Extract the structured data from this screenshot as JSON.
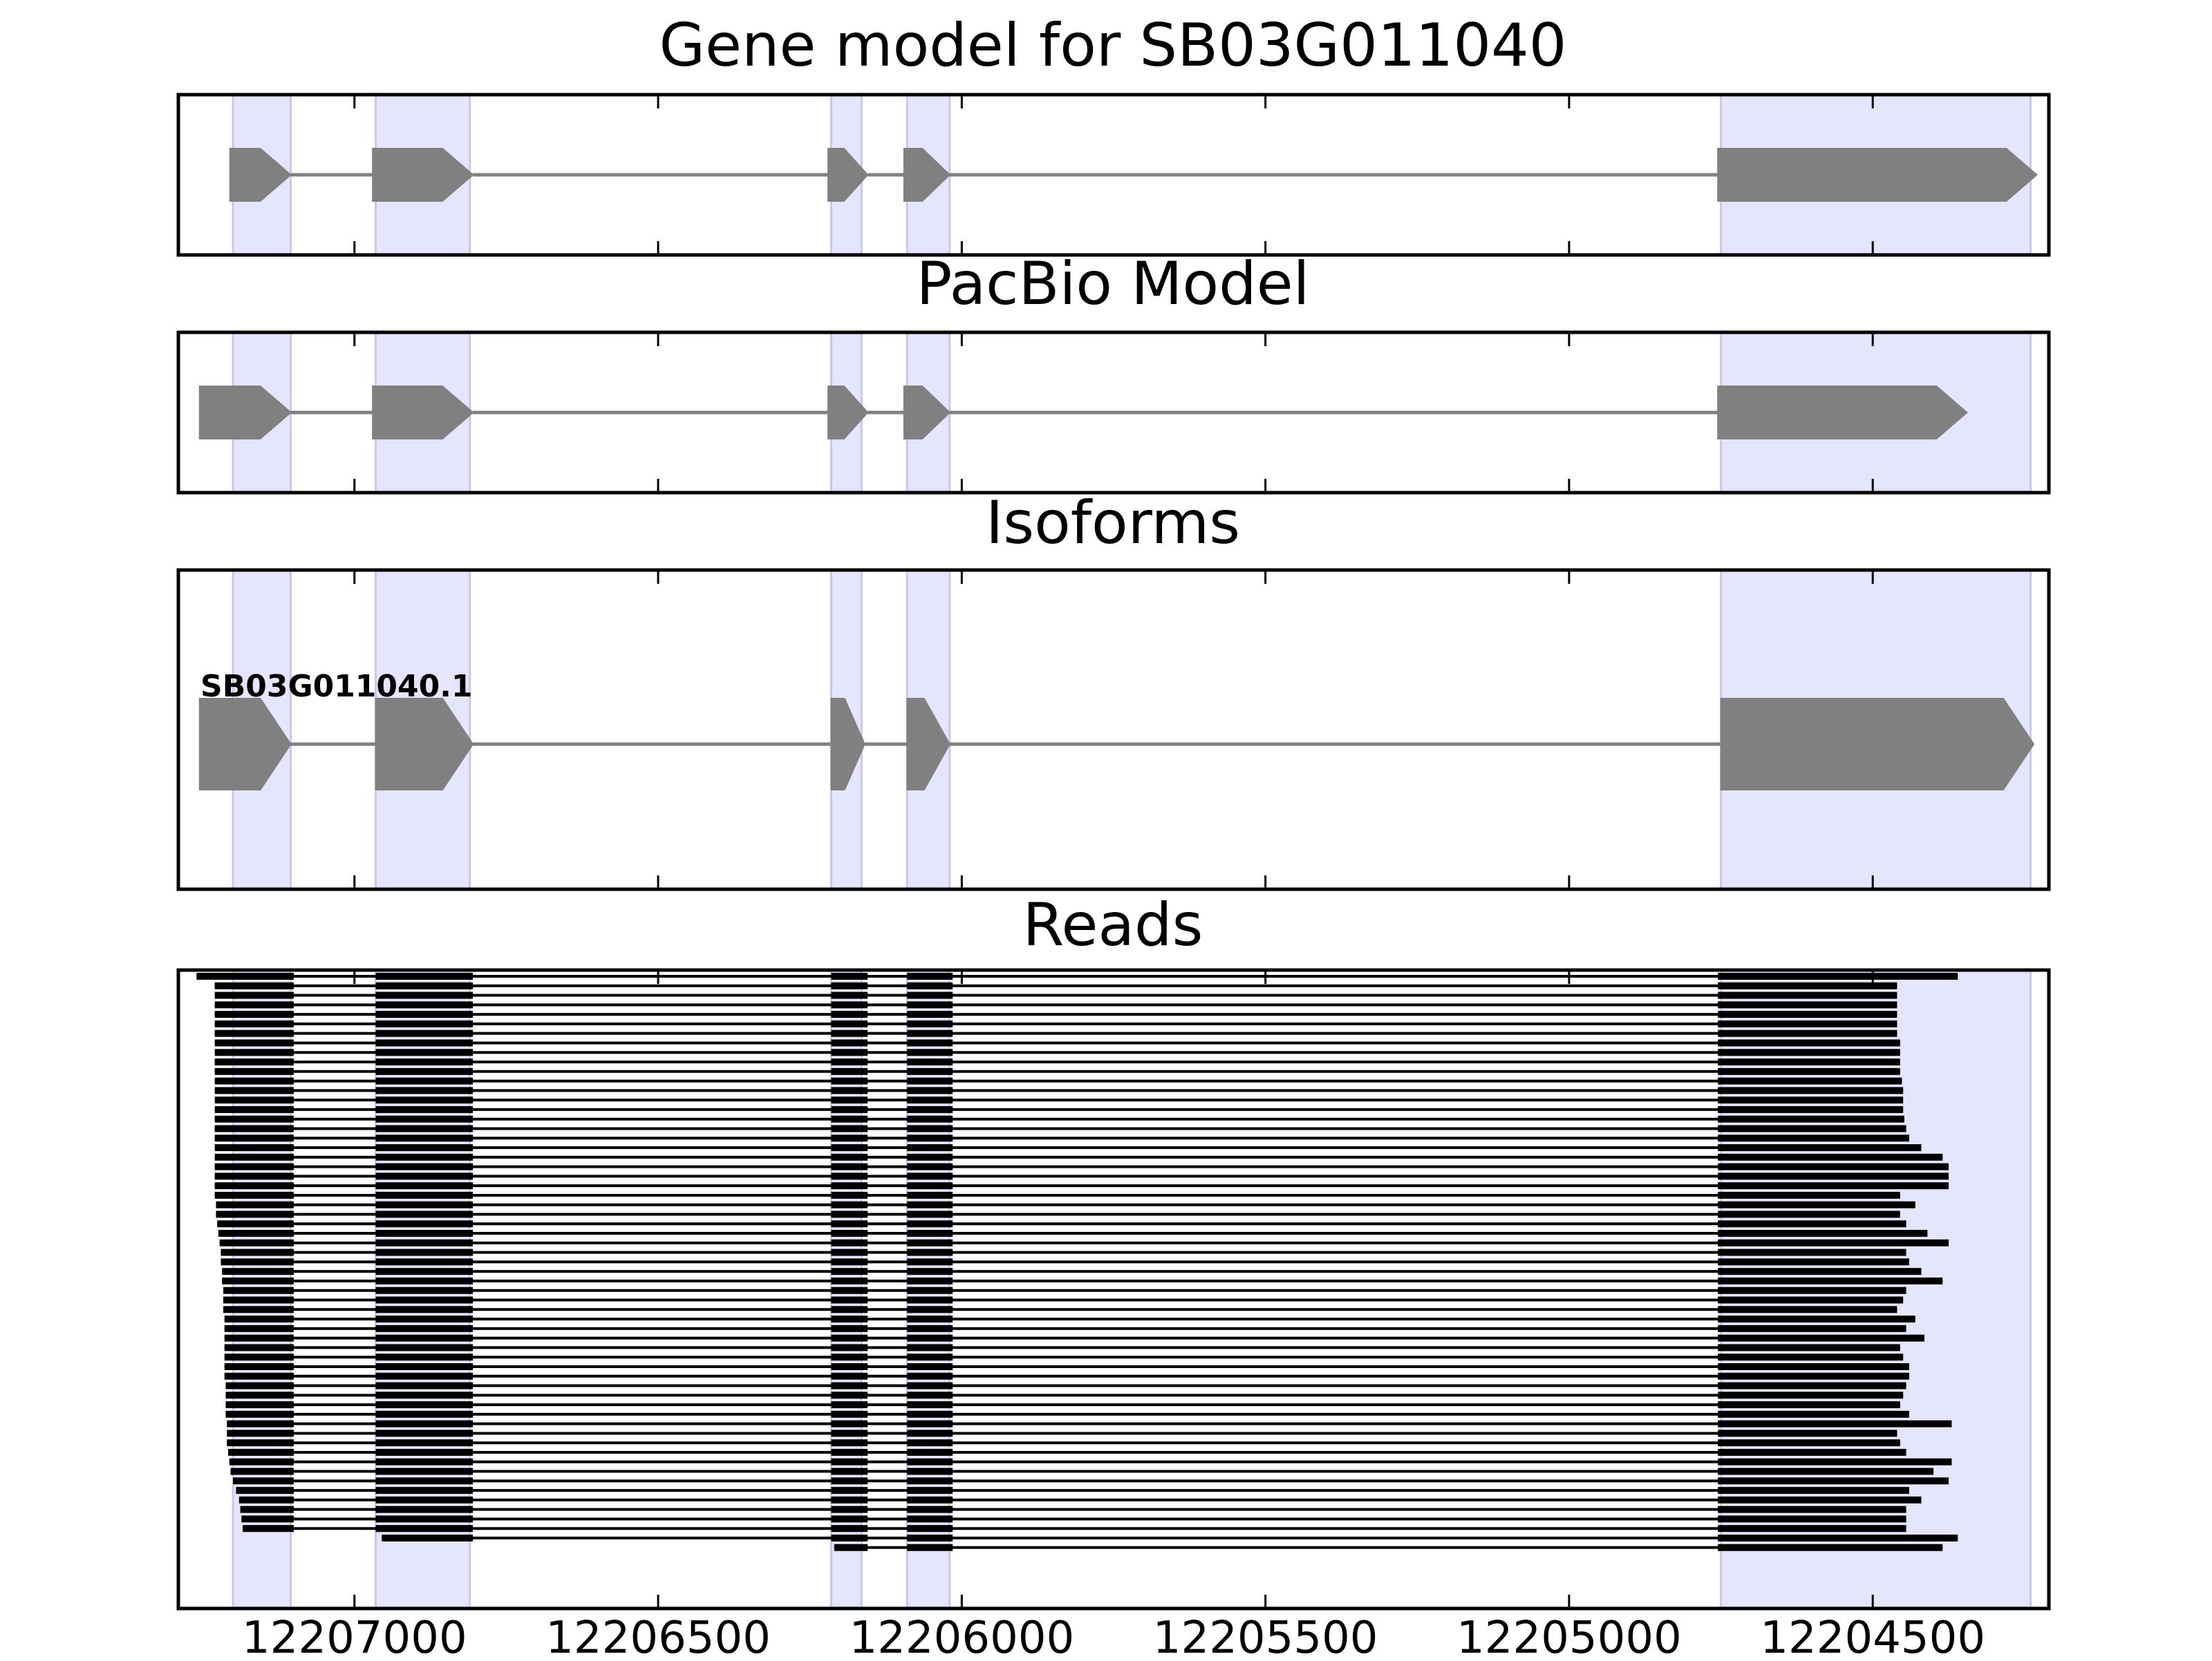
{
  "figure": {
    "panels": [
      {
        "id": "gene-model",
        "title": "Gene model for SB03G011040"
      },
      {
        "id": "pacbio-model",
        "title": "PacBio Model"
      },
      {
        "id": "isoforms",
        "title": "Isoforms",
        "isoform_label": "SB03G011040.1"
      },
      {
        "id": "reads",
        "title": "Reads"
      }
    ],
    "x_ticks": [
      "12207000",
      "12206500",
      "12206000",
      "12205500",
      "12205000",
      "12204500"
    ],
    "colors": {
      "exon": "#808080",
      "intron": "#808080",
      "highlight": "#e5e5ff",
      "highlight_edge": "#c8c8ee",
      "read": "#000000",
      "frame": "#000000"
    }
  },
  "chart_data": {
    "type": "gene-structure",
    "x_axis": {
      "reversed": true,
      "ticks": [
        12207000,
        12206500,
        12206000,
        12205500,
        12205000,
        12204500
      ],
      "range": [
        12207290,
        12204210
      ]
    },
    "highlight_regions": [
      [
        12207200,
        12207105
      ],
      [
        12206965,
        12206810
      ],
      [
        12206215,
        12206165
      ],
      [
        12206090,
        12206020
      ],
      [
        12204750,
        12204240
      ]
    ],
    "gene_model": {
      "strand": "-",
      "exons": [
        [
          12207205,
          12207105
        ],
        [
          12206970,
          12206805
        ],
        [
          12206220,
          12206155
        ],
        [
          12206095,
          12206020
        ],
        [
          12204755,
          12204230
        ]
      ]
    },
    "pacbio_model": {
      "strand": "-",
      "exons": [
        [
          12207255,
          12207105
        ],
        [
          12206970,
          12206805
        ],
        [
          12206220,
          12206155
        ],
        [
          12206095,
          12206020
        ],
        [
          12204755,
          12204345
        ]
      ]
    },
    "isoforms": [
      {
        "name": "SB03G011040.1",
        "strand": "-",
        "exons": [
          [
            12207255,
            12207105
          ],
          [
            12206965,
            12206805
          ],
          [
            12206215,
            12206160
          ],
          [
            12206090,
            12206020
          ],
          [
            12204750,
            12204235
          ]
        ]
      }
    ],
    "reads": {
      "count": 61,
      "exon_blocks": [
        [
          12206965,
          12206805
        ],
        [
          12206215,
          12206155
        ],
        [
          12206090,
          12206015
        ],
        [
          12204755,
          null
        ]
      ],
      "first_exon_end": 12207100,
      "starts": [
        12207260,
        12207230,
        12207230,
        12207230,
        12207230,
        12207230,
        12207230,
        12207230,
        12207230,
        12207230,
        12207230,
        12207230,
        12207230,
        12207230,
        12207230,
        12207230,
        12207230,
        12207230,
        12207230,
        12207230,
        12207230,
        12207230,
        12207230,
        12207230,
        12207228,
        12207228,
        12207226,
        12207224,
        12207222,
        12207220,
        12207220,
        12207218,
        12207218,
        12207216,
        12207216,
        12207216,
        12207214,
        12207214,
        12207214,
        12207214,
        12207214,
        12207214,
        12207214,
        12207212,
        12207212,
        12207212,
        12207212,
        12207210,
        12207210,
        12207210,
        12207208,
        12207206,
        12207204,
        12207200,
        12207195,
        12207190,
        12207188,
        12207186,
        12207184,
        12206955,
        12206210
      ],
      "ends": [
        12204360,
        12204460,
        12204460,
        12204460,
        12204460,
        12204460,
        12204460,
        12204455,
        12204455,
        12204455,
        12204455,
        12204452,
        12204450,
        12204450,
        12204450,
        12204448,
        12204445,
        12204440,
        12204420,
        12204385,
        12204375,
        12204375,
        12204375,
        12204455,
        12204430,
        12204455,
        12204445,
        12204410,
        12204375,
        12204445,
        12204440,
        12204420,
        12204385,
        12204445,
        12204450,
        12204460,
        12204430,
        12204445,
        12204415,
        12204455,
        12204450,
        12204440,
        12204440,
        12204445,
        12204450,
        12204455,
        12204440,
        12204370,
        12204460,
        12204455,
        12204445,
        12204370,
        12204400,
        12204375,
        12204440,
        12204420,
        12204445,
        12204445,
        12204445,
        12204360,
        12204385
      ]
    }
  }
}
